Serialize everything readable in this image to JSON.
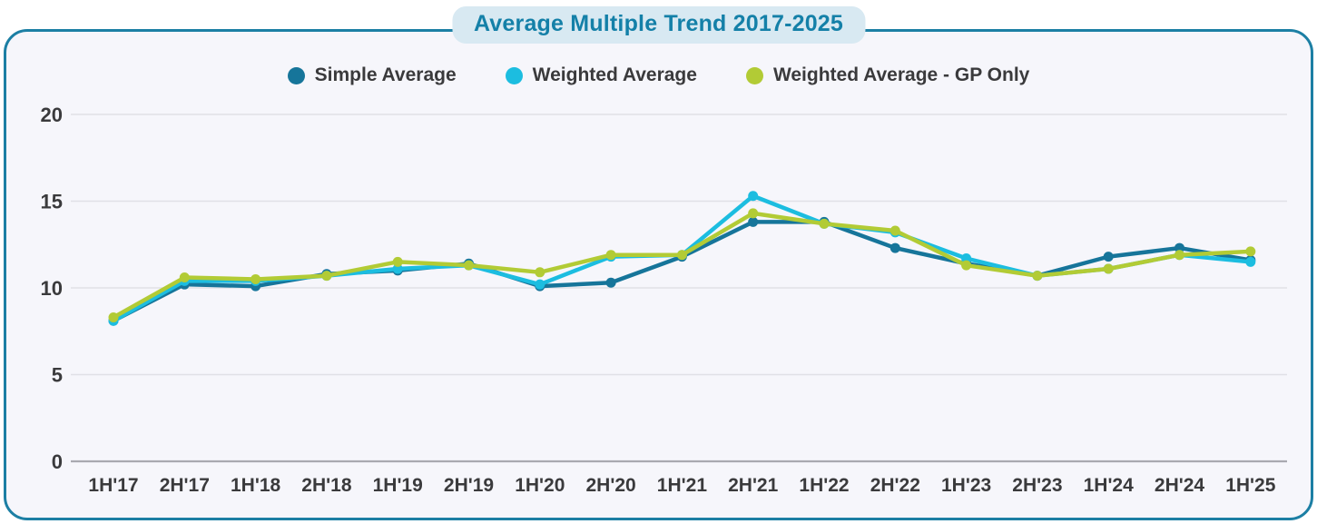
{
  "title": "Average Multiple Trend 2017-2025",
  "legend": {
    "items": [
      {
        "label": "Simple Average",
        "color": "#16759A"
      },
      {
        "label": "Weighted Average",
        "color": "#1CBDE0"
      },
      {
        "label": "Weighted Average - GP Only",
        "color": "#B2CB35"
      }
    ]
  },
  "chart_data": {
    "type": "line",
    "title": "Average Multiple Trend 2017-2025",
    "categories": [
      "1H'17",
      "2H'17",
      "1H'18",
      "2H'18",
      "1H'19",
      "2H'19",
      "1H'20",
      "2H'20",
      "1H'21",
      "2H'21",
      "1H'22",
      "2H'22",
      "1H'23",
      "2H'23",
      "1H'24",
      "2H'24",
      "1H'25"
    ],
    "series": [
      {
        "name": "Simple Average",
        "color": "#16759A",
        "values": [
          8.1,
          10.2,
          10.1,
          10.8,
          11.0,
          11.4,
          10.1,
          10.3,
          11.8,
          13.8,
          13.8,
          12.3,
          11.4,
          10.7,
          11.8,
          12.3,
          11.6
        ]
      },
      {
        "name": "Weighted Average",
        "color": "#1CBDE0",
        "values": [
          8.1,
          10.4,
          10.4,
          10.7,
          11.1,
          11.3,
          10.2,
          11.8,
          11.9,
          15.3,
          13.7,
          13.2,
          11.7,
          10.7,
          11.1,
          11.9,
          11.5
        ]
      },
      {
        "name": "Weighted Average - GP Only",
        "color": "#B2CB35",
        "values": [
          8.3,
          10.6,
          10.5,
          10.7,
          11.5,
          11.3,
          10.9,
          11.9,
          11.9,
          14.3,
          13.7,
          13.3,
          11.3,
          10.7,
          11.1,
          11.9,
          12.1
        ]
      }
    ],
    "xlabel": "",
    "ylabel": "",
    "yticks": [
      0,
      5,
      10,
      15,
      20
    ],
    "ylim": [
      0,
      22
    ],
    "grid": true,
    "legend_position": "top"
  },
  "colors": {
    "card_background": "#F6F6FB",
    "card_border": "#1C7FA4",
    "title_text": "#1480A8",
    "title_pill_background": "#D8E9F2",
    "gridline": "#E0E0E6",
    "axis_line": "#A9A9B0",
    "tick_label": "#3A3A3C"
  }
}
